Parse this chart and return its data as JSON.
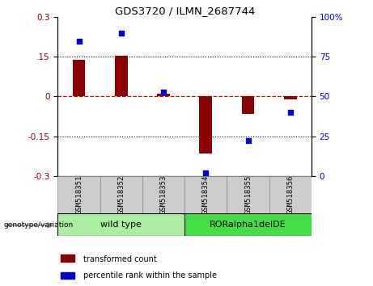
{
  "title": "GDS3720 / ILMN_2687744",
  "categories": [
    "GSM518351",
    "GSM518352",
    "GSM518353",
    "GSM518354",
    "GSM518355",
    "GSM518356"
  ],
  "bar_values": [
    0.14,
    0.155,
    0.01,
    -0.215,
    -0.065,
    -0.01
  ],
  "scatter_values": [
    85,
    90,
    53,
    2,
    22,
    40
  ],
  "ylim_left": [
    -0.3,
    0.3
  ],
  "ylim_right": [
    0,
    100
  ],
  "yticks_left": [
    -0.3,
    -0.15,
    0.0,
    0.15,
    0.3
  ],
  "yticks_right": [
    0,
    25,
    50,
    75,
    100
  ],
  "bar_color": "#8B0000",
  "scatter_color": "#0000CC",
  "zero_line_color": "#CC0000",
  "dot_line_color": "#111111",
  "group1_label": "wild type",
  "group2_label": "RORalpha1delDE",
  "group1_color": "#AAEEA0",
  "group2_color": "#44DD44",
  "cell_bg_color": "#CCCCCC",
  "legend_bar_label": "transformed count",
  "legend_scatter_label": "percentile rank within the sample",
  "genotype_label": "genotype/variation",
  "bar_width": 0.3
}
